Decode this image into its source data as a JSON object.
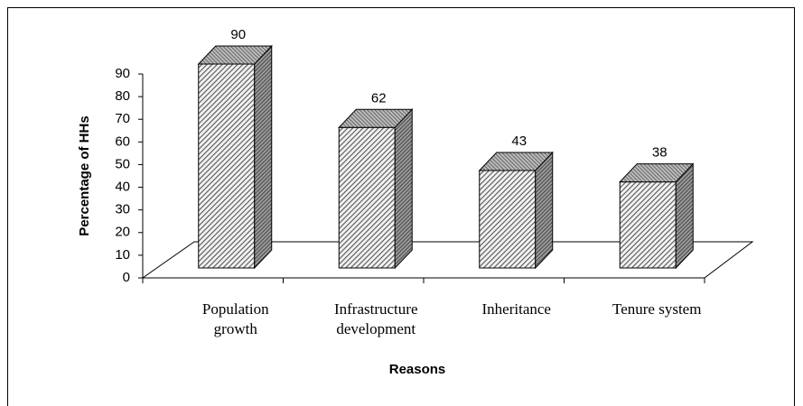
{
  "chart_data": {
    "type": "bar3d",
    "categories": [
      "Population\ngrowth",
      "Infrastructure\ndevelopment",
      "Inheritance",
      "Tenure system"
    ],
    "values": [
      90,
      62,
      43,
      38
    ],
    "y_axis_label": "Percentage of HHs",
    "x_axis_label": "Reasons",
    "ylim": [
      0,
      90
    ],
    "yticks": [
      0,
      10,
      20,
      30,
      40,
      50,
      60,
      70,
      80,
      90
    ],
    "color": "#9a9a9a"
  }
}
